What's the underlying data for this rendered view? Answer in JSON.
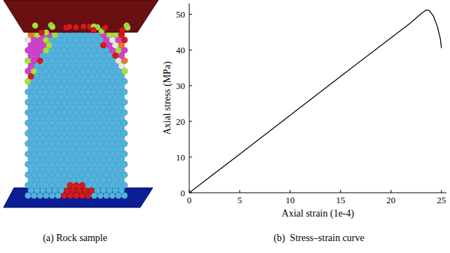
{
  "chart_data": {
    "type": "line",
    "xlabel": "Axial strain (1e-4)",
    "ylabel": "Axial stress (MPa)",
    "x": [
      0,
      5,
      10,
      15,
      20,
      22,
      23,
      23.5,
      23.8,
      24.2,
      24.6,
      24.9,
      25.0
    ],
    "values": [
      0,
      10.8,
      21.7,
      32.6,
      43.4,
      47.7,
      50.2,
      51.2,
      51.0,
      49.5,
      46.5,
      43.0,
      40.5
    ],
    "color": "#000000",
    "xlim": [
      0,
      25.5
    ],
    "ylim": [
      0,
      53
    ],
    "xticks": [
      0,
      5,
      10,
      15,
      20,
      25
    ],
    "yticks": [
      0,
      10,
      20,
      30,
      40,
      50
    ],
    "grid": false
  },
  "figure": {
    "captions": [
      "(a) Rock sample",
      "(b)  Stress–strain curve"
    ]
  }
}
